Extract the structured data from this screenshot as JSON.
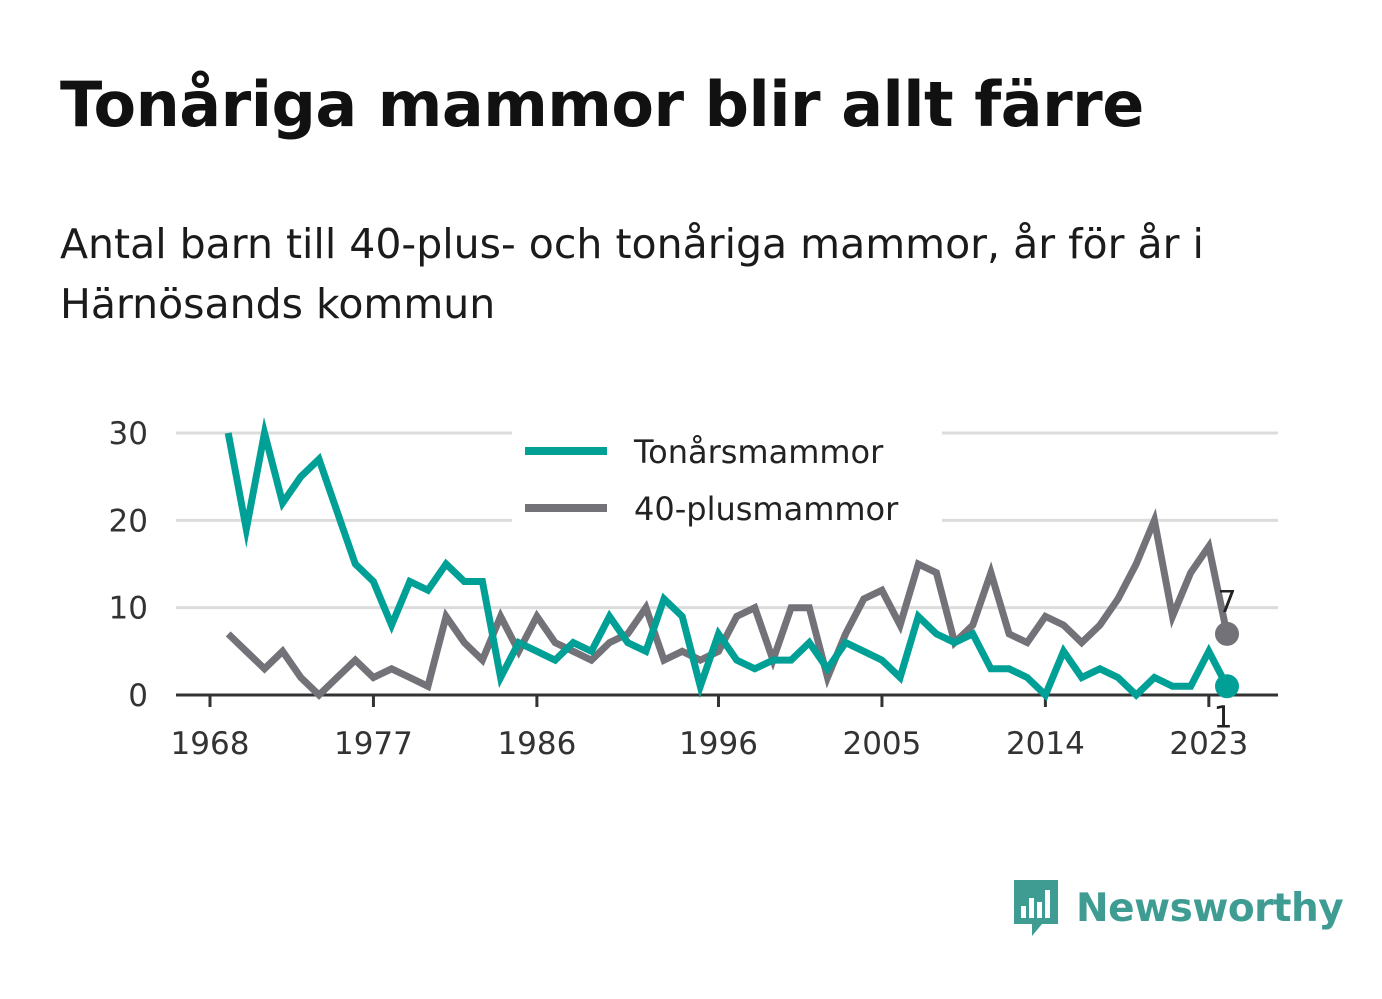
{
  "header": {
    "title": "Tonåriga mammor blir allt färre",
    "subtitle": "Antal barn till 40-plus- och tonåriga mammor, år för år i Härnösands kommun"
  },
  "brand": {
    "name": "Newsworthy",
    "icon": "bar-chart-speech-bubble-icon",
    "color": "#3f9c93"
  },
  "chart_data": {
    "type": "line",
    "title": "Tonåriga mammor blir allt färre",
    "subtitle": "Antal barn till 40-plus- och tonåriga mammor, år för år i Härnösands kommun",
    "xlabel": "",
    "ylabel": "",
    "xlim": [
      1968,
      2024
    ],
    "ylim": [
      0,
      30
    ],
    "x_ticks": [
      1968,
      1977,
      1986,
      1996,
      2005,
      2014,
      2023
    ],
    "y_ticks": [
      0,
      10,
      20,
      30
    ],
    "grid": "horizontal",
    "legend_position": "top-center",
    "x": [
      1969,
      1970,
      1971,
      1972,
      1973,
      1974,
      1975,
      1976,
      1977,
      1978,
      1979,
      1980,
      1981,
      1982,
      1983,
      1984,
      1985,
      1986,
      1987,
      1988,
      1989,
      1990,
      1991,
      1992,
      1993,
      1994,
      1995,
      1996,
      1997,
      1998,
      1999,
      2000,
      2001,
      2002,
      2003,
      2004,
      2005,
      2006,
      2007,
      2008,
      2009,
      2010,
      2011,
      2012,
      2013,
      2014,
      2015,
      2016,
      2017,
      2018,
      2019,
      2020,
      2021,
      2022,
      2023,
      2024
    ],
    "series": [
      {
        "name": "Tonårsmammor",
        "color": "#00a096",
        "values": [
          30,
          19,
          30,
          22,
          25,
          27,
          21,
          15,
          13,
          8,
          13,
          12,
          15,
          13,
          13,
          2,
          6,
          5,
          4,
          6,
          5,
          9,
          6,
          5,
          11,
          9,
          1,
          7,
          4,
          3,
          4,
          4,
          6,
          3,
          6,
          5,
          4,
          2,
          9,
          7,
          6,
          7,
          3,
          3,
          2,
          0,
          5,
          2,
          3,
          2,
          0,
          2,
          1,
          1,
          5,
          1
        ],
        "end_label": "1"
      },
      {
        "name": "40-plusmammor",
        "color": "#737278",
        "values": [
          7,
          5,
          3,
          5,
          2,
          0,
          2,
          4,
          2,
          3,
          2,
          1,
          9,
          6,
          4,
          9,
          5,
          9,
          6,
          5,
          4,
          6,
          7,
          10,
          4,
          5,
          4,
          5,
          9,
          10,
          4,
          10,
          10,
          2,
          7,
          11,
          12,
          8,
          15,
          14,
          6,
          8,
          14,
          7,
          6,
          9,
          8,
          6,
          8,
          11,
          15,
          20,
          9,
          14,
          17,
          7
        ],
        "end_label": "7"
      }
    ]
  }
}
